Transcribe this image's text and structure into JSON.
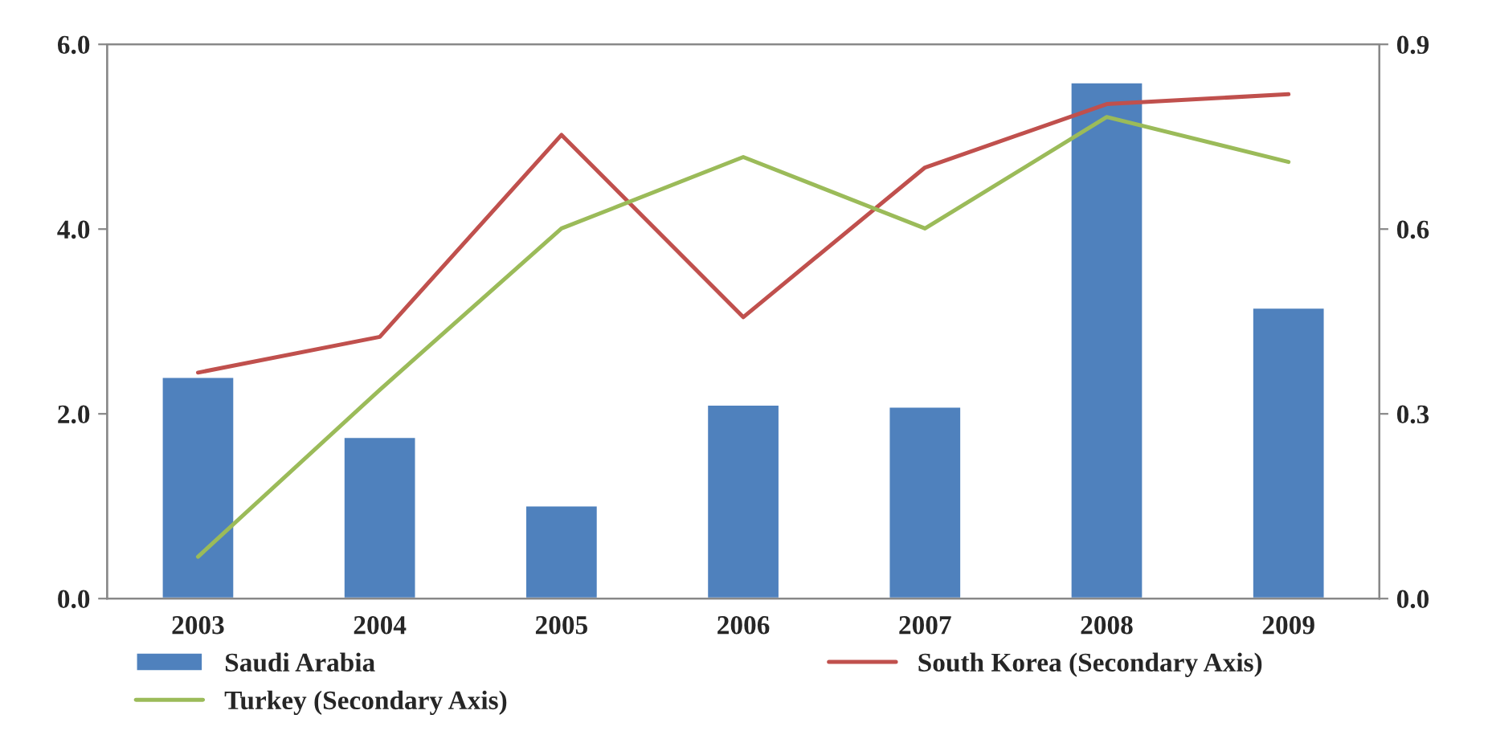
{
  "chart_data": {
    "type": "bar",
    "categories": [
      "2003",
      "2004",
      "2005",
      "2006",
      "2007",
      "2008",
      "2009"
    ],
    "series": [
      {
        "name": "Saudi Arabia",
        "color": "#4f81bd",
        "values": [
          2.4,
          1.75,
          1.01,
          2.1,
          2.08,
          5.59,
          3.15
        ]
      },
      {
        "name": "South Korea (Secondary Axis)",
        "type": "line",
        "axis": "y2",
        "color": "#c0504d",
        "values": [
          0.367,
          0.425,
          0.753,
          0.457,
          0.7,
          0.803,
          0.819
        ]
      },
      {
        "name": "Turkey (Secondary Axis)",
        "type": "line",
        "axis": "y2",
        "color": "#9bbb59",
        "values": [
          0.068,
          0.339,
          0.601,
          0.717,
          0.601,
          0.782,
          0.709
        ]
      }
    ],
    "ylim": [
      0,
      6
    ],
    "yticks": [
      {
        "value": 0,
        "label": "0.0"
      },
      {
        "value": 2,
        "label": "2.0"
      },
      {
        "value": 4,
        "label": "4.0"
      },
      {
        "value": 6,
        "label": "6.0"
      }
    ],
    "y2lim": [
      0,
      0.9
    ],
    "y2ticks": [
      {
        "value": 0,
        "label": "0.0"
      },
      {
        "value": 0.3,
        "label": "0.3"
      },
      {
        "value": 0.6,
        "label": "0.6"
      },
      {
        "value": 0.9,
        "label": "0.9"
      }
    ],
    "grid": false,
    "legend": "bottom",
    "marker": "none",
    "line_style": "solid"
  }
}
